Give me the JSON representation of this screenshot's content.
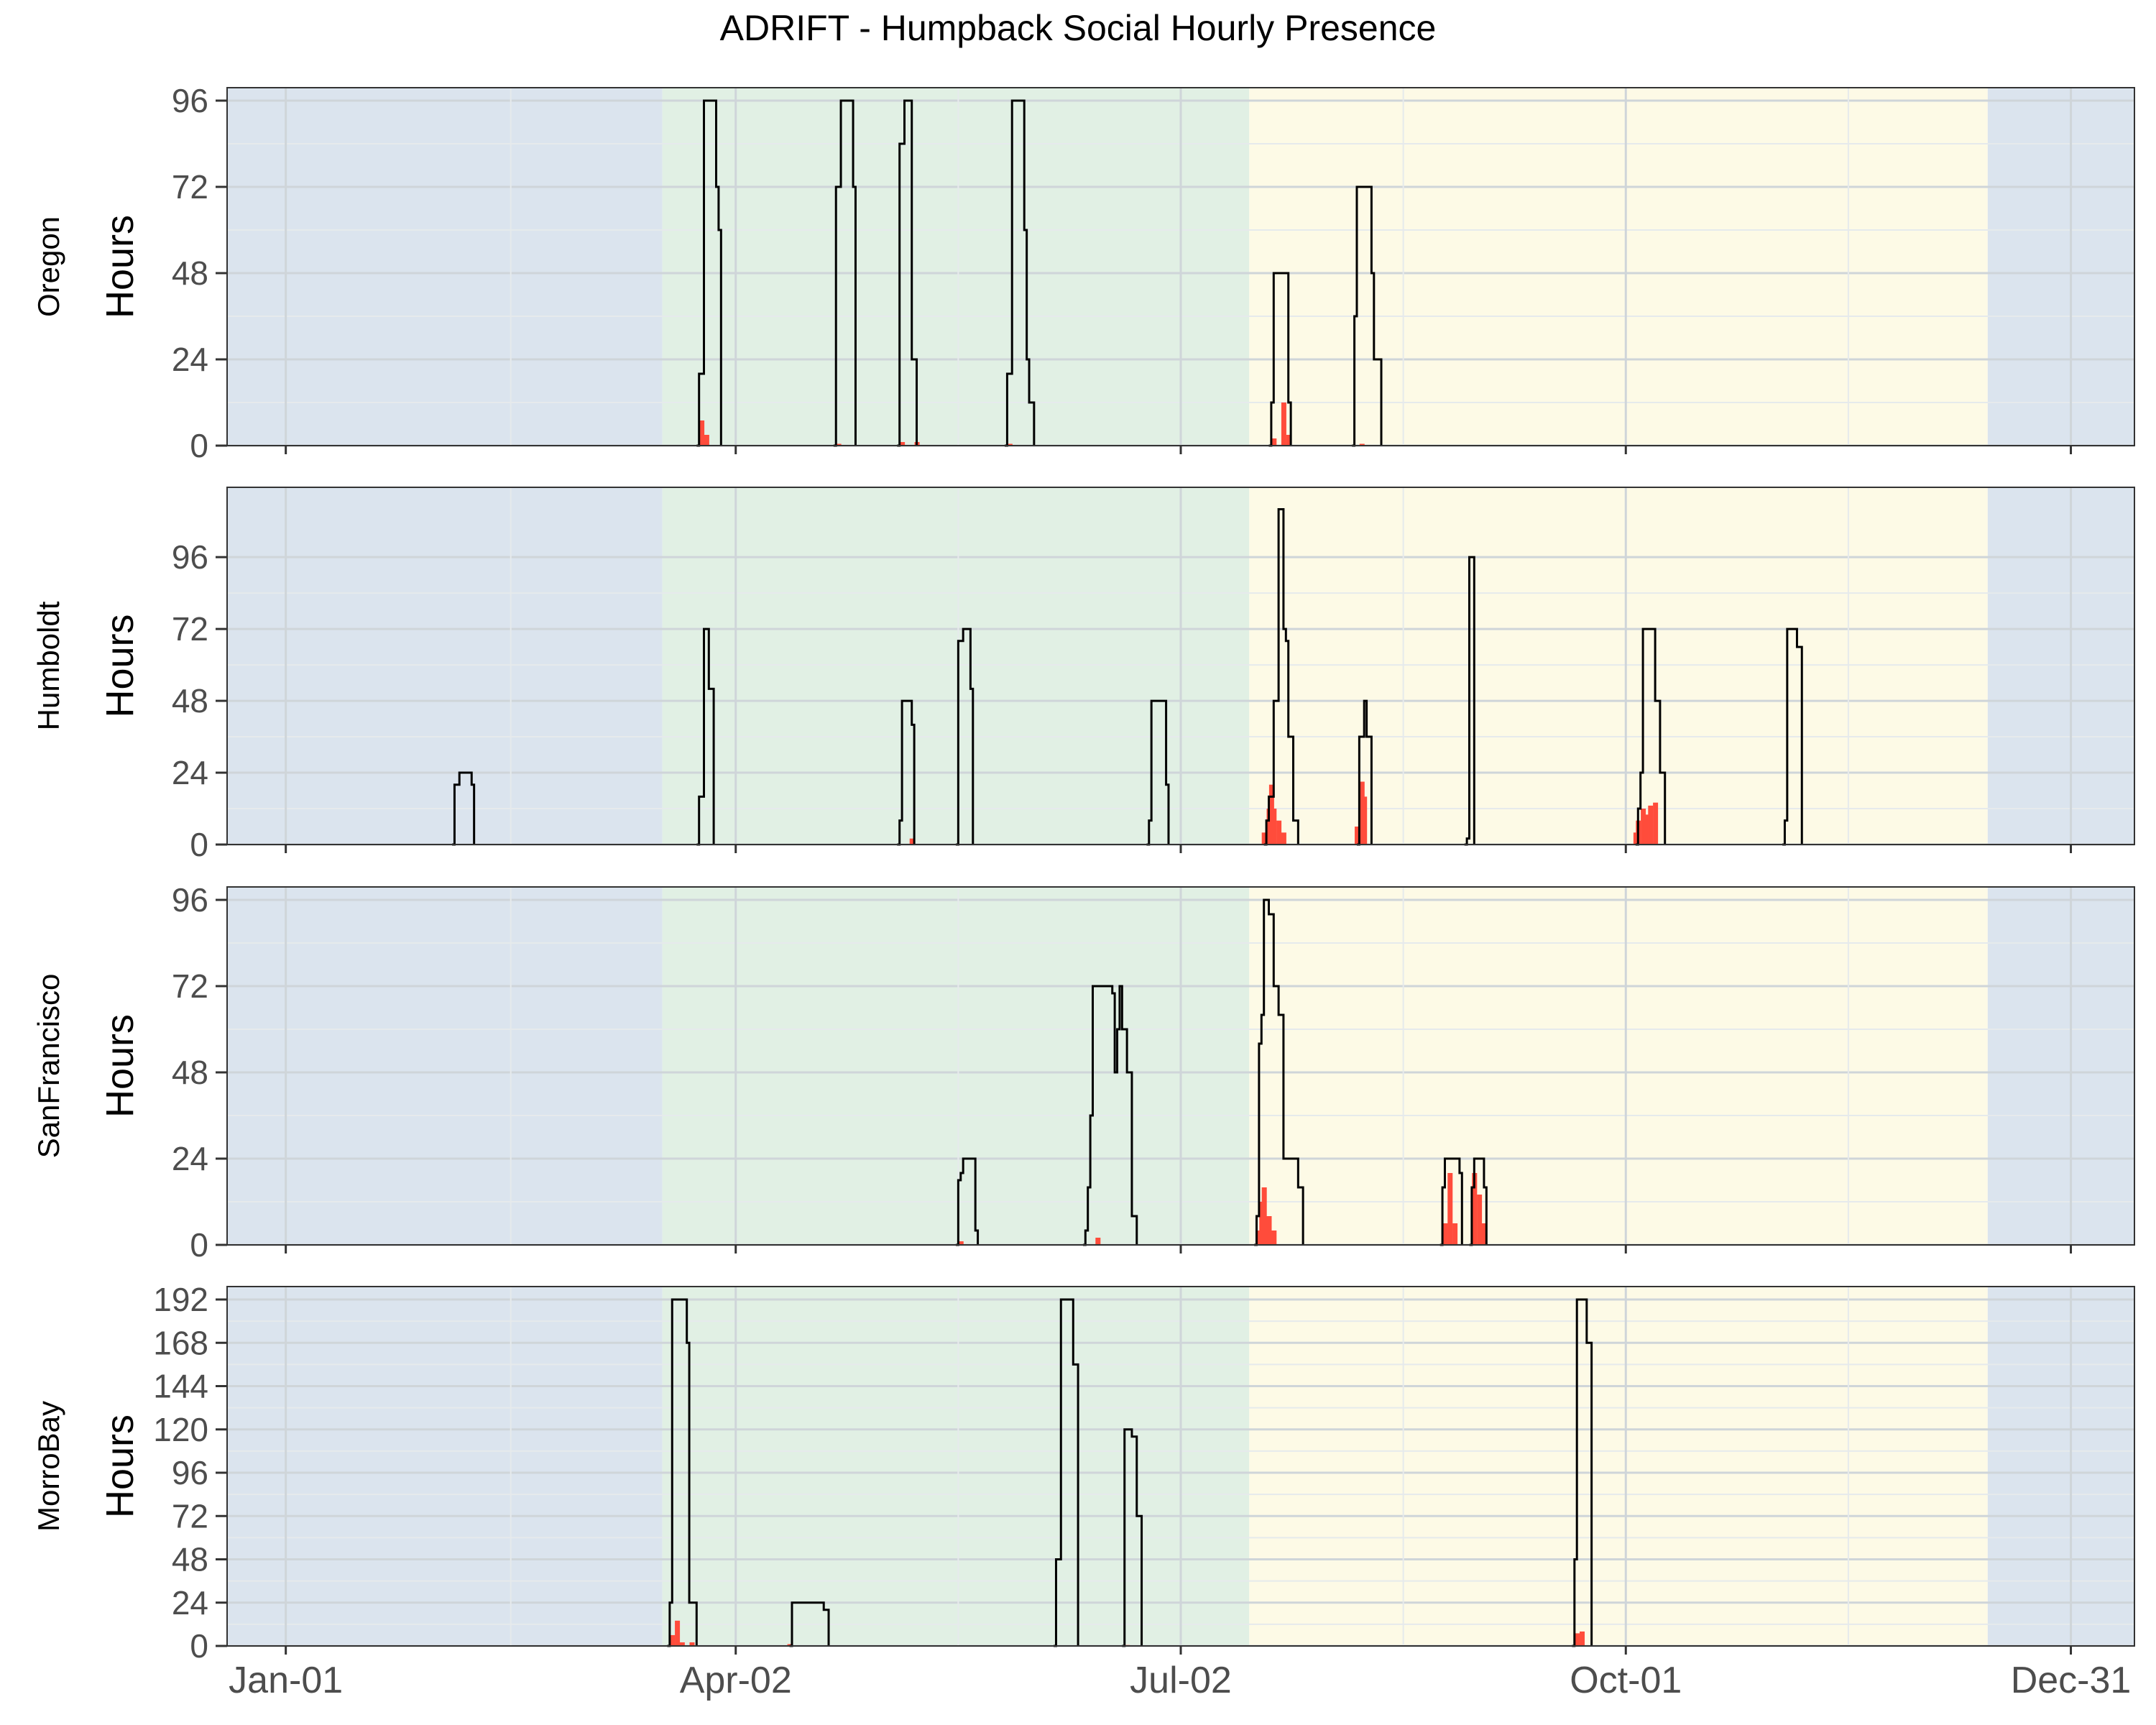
{
  "title": "ADRIFT - Humpback Social Hourly Presence",
  "colors": {
    "winter": "#dbe4ee",
    "spring": "#e1f0e4",
    "summer": "#fdfae6",
    "line": "#000000",
    "bars": "#ff4c3b",
    "grid_major": "#cfd5d9",
    "grid_minor": "#e6eaec",
    "panel_border": "#333333"
  },
  "chart_data": {
    "type": "step-line with bars (faceted)",
    "x_axis": {
      "type": "date",
      "year_days": 366,
      "range": [
        "Jan-01",
        "Dec-31"
      ],
      "tick_labels": [
        "Jan-01",
        "Apr-02",
        "Jul-02",
        "Oct-01",
        "Dec-31"
      ]
    },
    "panels": [
      {
        "name": "Oregon",
        "ylabel": "Hours",
        "yticks": [
          0,
          24,
          48,
          72,
          96
        ],
        "ylim": [
          0,
          96
        ],
        "seasons": [
          {
            "season": "winter",
            "start": "Jan-01",
            "end": "Mar-18"
          },
          {
            "season": "spring",
            "start": "Mar-18",
            "end": "Jul-16"
          },
          {
            "season": "summer",
            "start": "Jul-16",
            "end": "Dec-14"
          },
          {
            "season": "winter",
            "start": "Dec-14",
            "end": "Dec-31"
          }
        ],
        "series": [
          {
            "values": [
              [
                84,
                0
              ],
              [
                84.5,
                20
              ],
              [
                85.5,
                96
              ],
              [
                88,
                72
              ],
              [
                88.5,
                60
              ],
              [
                89,
                0
              ]
            ]
          },
          {
            "values": [
              [
                112,
                0
              ],
              [
                112.5,
                72
              ],
              [
                113.5,
                96
              ],
              [
                116,
                72
              ],
              [
                116.5,
                0
              ]
            ]
          },
          {
            "values": [
              [
                125,
                0
              ],
              [
                125.5,
                84
              ],
              [
                126.5,
                96
              ],
              [
                128,
                24
              ],
              [
                129,
                0
              ]
            ]
          },
          {
            "values": [
              [
                147,
                0
              ],
              [
                147.5,
                20
              ],
              [
                148.5,
                96
              ],
              [
                151,
                60
              ],
              [
                151.5,
                24
              ],
              [
                152,
                12
              ],
              [
                153,
                0
              ]
            ]
          },
          {
            "values": [
              [
                201,
                0
              ],
              [
                201.5,
                12
              ],
              [
                202,
                48
              ],
              [
                205,
                12
              ],
              [
                205.5,
                0
              ]
            ]
          },
          {
            "values": [
              [
                218,
                0
              ],
              [
                218.5,
                36
              ],
              [
                219,
                72
              ],
              [
                222,
                48
              ],
              [
                222.5,
                24
              ],
              [
                224,
                0
              ]
            ]
          }
        ],
        "bars": [
          {
            "x": 85,
            "y": 7
          },
          {
            "x": 86,
            "y": 3
          },
          {
            "x": 113,
            "y": 0.5
          },
          {
            "x": 126,
            "y": 1
          },
          {
            "x": 129,
            "y": 1
          },
          {
            "x": 148,
            "y": 0.5
          },
          {
            "x": 202,
            "y": 2
          },
          {
            "x": 204,
            "y": 12
          },
          {
            "x": 205,
            "y": 3
          },
          {
            "x": 220,
            "y": 0.5
          }
        ]
      },
      {
        "name": "Humboldt",
        "ylabel": "Hours",
        "yticks": [
          0,
          24,
          48,
          72,
          96
        ],
        "ylim": [
          0,
          115
        ],
        "seasons": [
          {
            "season": "winter",
            "start": "Jan-01",
            "end": "Mar-18"
          },
          {
            "season": "spring",
            "start": "Mar-18",
            "end": "Jul-16"
          },
          {
            "season": "summer",
            "start": "Jul-16",
            "end": "Dec-14"
          },
          {
            "season": "winter",
            "start": "Dec-14",
            "end": "Dec-31"
          }
        ],
        "series": [
          {
            "values": [
              [
                34,
                0
              ],
              [
                34.5,
                20
              ],
              [
                35.5,
                24
              ],
              [
                38,
                20
              ],
              [
                38.5,
                0
              ]
            ]
          },
          {
            "values": [
              [
                84,
                0
              ],
              [
                84.5,
                16
              ],
              [
                85.5,
                72
              ],
              [
                86.5,
                52
              ],
              [
                87.5,
                0
              ]
            ]
          },
          {
            "values": [
              [
                125,
                0
              ],
              [
                125.5,
                8
              ],
              [
                126,
                48
              ],
              [
                128,
                40
              ],
              [
                128.5,
                0
              ]
            ]
          },
          {
            "values": [
              [
                137,
                0
              ],
              [
                137.5,
                68
              ],
              [
                138.5,
                72
              ],
              [
                140,
                52
              ],
              [
                140.5,
                0
              ]
            ]
          },
          {
            "values": [
              [
                176,
                0
              ],
              [
                176.5,
                8
              ],
              [
                177,
                48
              ],
              [
                180,
                20
              ],
              [
                180.5,
                0
              ]
            ]
          },
          {
            "values": [
              [
                200,
                0
              ],
              [
                200.5,
                8
              ],
              [
                201,
                16
              ],
              [
                202,
                48
              ],
              [
                203,
                112
              ],
              [
                204,
                72
              ],
              [
                204.5,
                68
              ],
              [
                205,
                36
              ],
              [
                206,
                8
              ],
              [
                207,
                0
              ]
            ]
          },
          {
            "values": [
              [
                219,
                0
              ],
              [
                219.5,
                36
              ],
              [
                220.5,
                48
              ],
              [
                221,
                36
              ],
              [
                222,
                0
              ]
            ]
          },
          {
            "values": [
              [
                241,
                0
              ],
              [
                241.5,
                2
              ],
              [
                242,
                96
              ],
              [
                243,
                0
              ]
            ]
          },
          {
            "values": [
              [
                276,
                0
              ],
              [
                276.5,
                12
              ],
              [
                277,
                24
              ],
              [
                277.5,
                72
              ],
              [
                280,
                48
              ],
              [
                281,
                24
              ],
              [
                282,
                0
              ]
            ]
          },
          {
            "values": [
              [
                306,
                0
              ],
              [
                306.5,
                8
              ],
              [
                307,
                72
              ],
              [
                309,
                66
              ],
              [
                310,
                0
              ]
            ]
          }
        ],
        "bars": [
          {
            "x": 200,
            "y": 4
          },
          {
            "x": 201,
            "y": 12
          },
          {
            "x": 201.5,
            "y": 20
          },
          {
            "x": 202,
            "y": 12
          },
          {
            "x": 203,
            "y": 8
          },
          {
            "x": 204,
            "y": 4
          },
          {
            "x": 219,
            "y": 6
          },
          {
            "x": 220,
            "y": 21
          },
          {
            "x": 220.5,
            "y": 16
          },
          {
            "x": 128,
            "y": 2
          },
          {
            "x": 276,
            "y": 4
          },
          {
            "x": 276.5,
            "y": 8
          },
          {
            "x": 277.5,
            "y": 12
          },
          {
            "x": 278,
            "y": 10
          },
          {
            "x": 279,
            "y": 13
          },
          {
            "x": 280,
            "y": 14
          }
        ]
      },
      {
        "name": "SanFrancisco",
        "ylabel": "Hours",
        "yticks": [
          0,
          24,
          48,
          72,
          96
        ],
        "ylim": [
          0,
          96
        ],
        "seasons": [
          {
            "season": "winter",
            "start": "Jan-01",
            "end": "Mar-18"
          },
          {
            "season": "spring",
            "start": "Mar-18",
            "end": "Jul-16"
          },
          {
            "season": "summer",
            "start": "Jul-16",
            "end": "Dec-14"
          },
          {
            "season": "winter",
            "start": "Dec-14",
            "end": "Dec-31"
          }
        ],
        "series": [
          {
            "values": [
              [
                137,
                0
              ],
              [
                137.5,
                18
              ],
              [
                138,
                20
              ],
              [
                138.5,
                24
              ],
              [
                141,
                4
              ],
              [
                141.5,
                0
              ]
            ]
          },
          {
            "values": [
              [
                163,
                0
              ],
              [
                163.5,
                4
              ],
              [
                164,
                16
              ],
              [
                164.5,
                36
              ],
              [
                165,
                72
              ],
              [
                169,
                70
              ],
              [
                169.5,
                48
              ],
              [
                170,
                60
              ],
              [
                170.5,
                72
              ],
              [
                171,
                60
              ],
              [
                172,
                48
              ],
              [
                173,
                8
              ],
              [
                174,
                0
              ]
            ]
          },
          {
            "values": [
              [
                198,
                0
              ],
              [
                198.5,
                8
              ],
              [
                199,
                56
              ],
              [
                199.5,
                64
              ],
              [
                200,
                96
              ],
              [
                201,
                92
              ],
              [
                202,
                72
              ],
              [
                203,
                64
              ],
              [
                204,
                24
              ],
              [
                207,
                16
              ],
              [
                208,
                0
              ]
            ]
          },
          {
            "values": [
              [
                236,
                0
              ],
              [
                236.5,
                16
              ],
              [
                237,
                24
              ],
              [
                240,
                20
              ],
              [
                240.5,
                0
              ]
            ]
          },
          {
            "values": [
              [
                242,
                0
              ],
              [
                242.5,
                16
              ],
              [
                243,
                24
              ],
              [
                245,
                16
              ],
              [
                245.5,
                0
              ]
            ]
          }
        ],
        "bars": [
          {
            "x": 138,
            "y": 1
          },
          {
            "x": 166,
            "y": 2
          },
          {
            "x": 199,
            "y": 4
          },
          {
            "x": 199.5,
            "y": 12
          },
          {
            "x": 200,
            "y": 16
          },
          {
            "x": 201,
            "y": 8
          },
          {
            "x": 202,
            "y": 4
          },
          {
            "x": 237,
            "y": 6
          },
          {
            "x": 238,
            "y": 20
          },
          {
            "x": 239,
            "y": 6
          },
          {
            "x": 243,
            "y": 20
          },
          {
            "x": 244,
            "y": 14
          },
          {
            "x": 245,
            "y": 6
          }
        ]
      },
      {
        "name": "MorroBay",
        "ylabel": "Hours",
        "yticks": [
          0,
          24,
          48,
          72,
          96,
          120,
          144,
          168,
          192
        ],
        "ylim": [
          0,
          192
        ],
        "seasons": [
          {
            "season": "winter",
            "start": "Jan-01",
            "end": "Mar-18"
          },
          {
            "season": "spring",
            "start": "Mar-18",
            "end": "Jul-16"
          },
          {
            "season": "summer",
            "start": "Jul-16",
            "end": "Dec-14"
          },
          {
            "season": "winter",
            "start": "Dec-14",
            "end": "Dec-31"
          }
        ],
        "series": [
          {
            "values": [
              [
                78,
                0
              ],
              [
                78.5,
                24
              ],
              [
                79,
                192
              ],
              [
                82,
                168
              ],
              [
                82.5,
                24
              ],
              [
                84,
                0
              ]
            ]
          },
          {
            "values": [
              [
                103,
                0
              ],
              [
                103.5,
                24
              ],
              [
                110,
                20
              ],
              [
                111,
                0
              ]
            ]
          },
          {
            "values": [
              [
                157,
                0
              ],
              [
                157.5,
                48
              ],
              [
                158.5,
                192
              ],
              [
                161,
                156
              ],
              [
                162,
                0
              ]
            ]
          },
          {
            "values": [
              [
                171,
                0
              ],
              [
                171.5,
                120
              ],
              [
                173,
                116
              ],
              [
                174,
                72
              ],
              [
                175,
                0
              ]
            ]
          },
          {
            "values": [
              [
                263,
                0
              ],
              [
                263.5,
                48
              ],
              [
                264,
                192
              ],
              [
                266,
                168
              ],
              [
                267,
                0
              ]
            ]
          }
        ],
        "bars": [
          {
            "x": 79,
            "y": 6
          },
          {
            "x": 80,
            "y": 14
          },
          {
            "x": 81,
            "y": 2
          },
          {
            "x": 83,
            "y": 2
          },
          {
            "x": 103,
            "y": 1
          },
          {
            "x": 172,
            "y": 0.5
          },
          {
            "x": 264,
            "y": 7
          },
          {
            "x": 265,
            "y": 8
          }
        ]
      }
    ]
  }
}
